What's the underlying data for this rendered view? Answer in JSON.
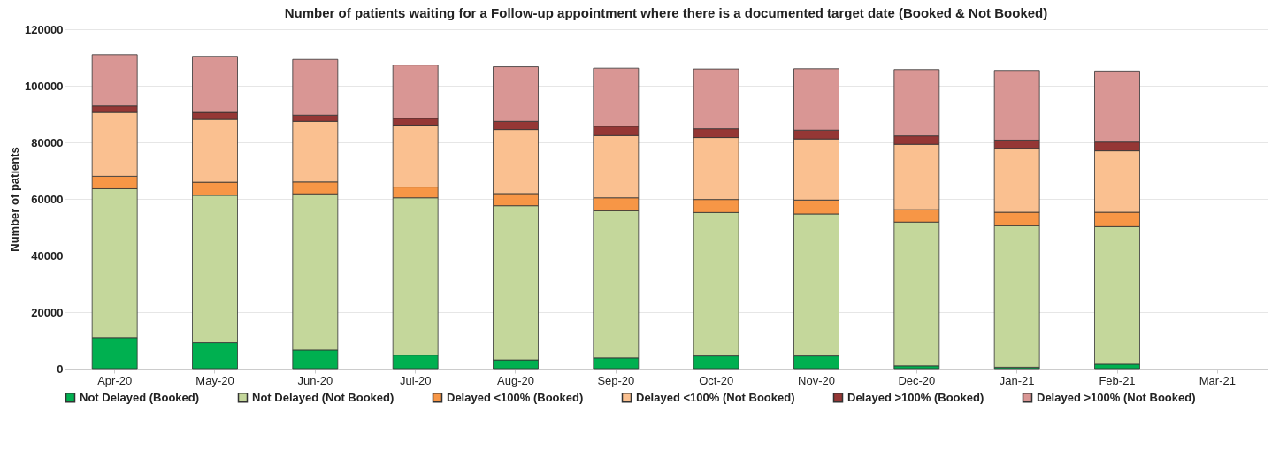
{
  "chart_data": {
    "type": "bar",
    "stacked": true,
    "title": "Number of patients waiting for a Follow-up appointment where there is a documented target date (Booked & Not Booked)",
    "ylabel": "Number of patients",
    "categories": [
      "Apr-20",
      "May-20",
      "Jun-20",
      "Jul-20",
      "Aug-20",
      "Sep-20",
      "Oct-20",
      "Nov-20",
      "Dec-20",
      "Jan-21",
      "Feb-21",
      "Mar-21"
    ],
    "series": [
      {
        "name": "Not Delayed (Booked)",
        "color": "#00b050",
        "values": [
          11000,
          9200,
          6600,
          4800,
          3100,
          3800,
          4500,
          4500,
          1000,
          500,
          1600,
          null
        ]
      },
      {
        "name": "Not Delayed (Not Booked)",
        "color": "#c4d79b",
        "values": [
          52600,
          52100,
          55200,
          55600,
          54500,
          52000,
          50700,
          50200,
          50800,
          50000,
          48600,
          null
        ]
      },
      {
        "name": "Delayed <100% (Booked)",
        "color": "#f79646",
        "values": [
          4400,
          4600,
          4200,
          3800,
          4300,
          4600,
          4600,
          4900,
          4400,
          4800,
          5100,
          null
        ]
      },
      {
        "name": "Delayed <100% (Not Booked)",
        "color": "#fac090",
        "values": [
          22600,
          22200,
          21400,
          21900,
          22600,
          22000,
          21900,
          21600,
          23100,
          22600,
          21700,
          null
        ]
      },
      {
        "name": "Delayed >100% (Booked)",
        "color": "#953735",
        "values": [
          2300,
          2500,
          2200,
          2400,
          2900,
          3300,
          3100,
          3100,
          3000,
          2900,
          3100,
          null
        ]
      },
      {
        "name": "Delayed >100% (Not Booked)",
        "color": "#d99694",
        "values": [
          18100,
          19800,
          19700,
          18800,
          19300,
          20500,
          21100,
          21700,
          23400,
          24600,
          25100,
          null
        ]
      }
    ],
    "ylim": [
      0,
      120000
    ],
    "yticks": [
      0,
      20000,
      40000,
      60000,
      80000,
      100000,
      120000
    ],
    "grid": "y",
    "legend": "bottom"
  }
}
